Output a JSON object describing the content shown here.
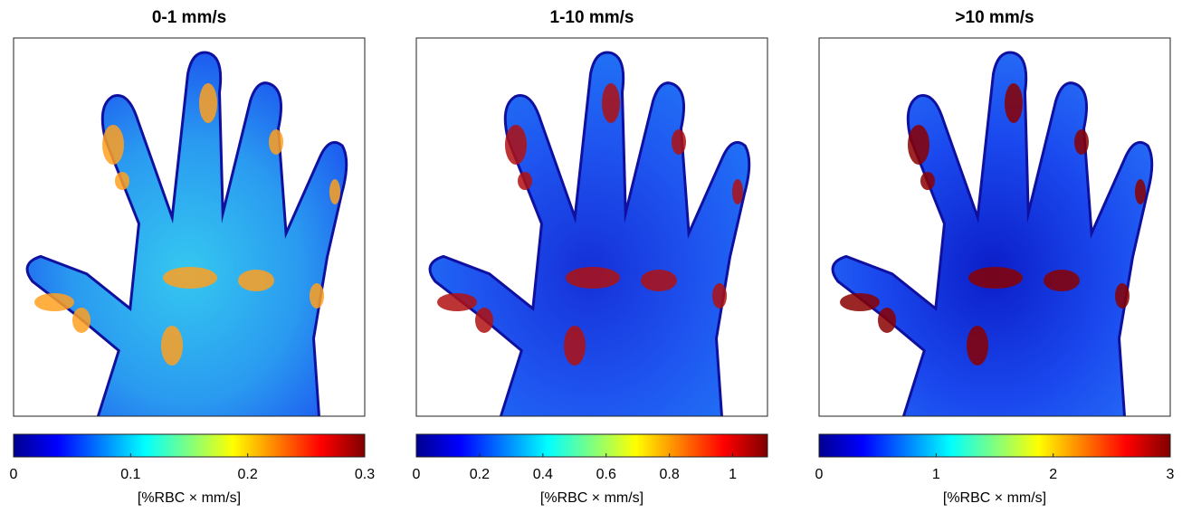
{
  "chart_data": [
    {
      "type": "image",
      "title": "0-1 mm/s",
      "colorbar": {
        "label": "[%RBC × mm/s]",
        "colormap": "jet",
        "lim": [
          0,
          0.3
        ],
        "ticks": [
          0,
          0.1,
          0.2,
          0.3
        ]
      }
    },
    {
      "type": "image",
      "title": "1-10 mm/s",
      "colorbar": {
        "label": "[%RBC × mm/s]",
        "colormap": "jet",
        "lim": [
          0,
          1.11
        ],
        "ticks": [
          0,
          0.2,
          0.4,
          0.6,
          0.8,
          1
        ]
      }
    },
    {
      "type": "image",
      "title": ">10 mm/s",
      "colorbar": {
        "label": "[%RBC × mm/s]",
        "colormap": "jet",
        "lim": [
          0,
          3
        ],
        "ticks": [
          0,
          1,
          2,
          3
        ]
      }
    }
  ]
}
